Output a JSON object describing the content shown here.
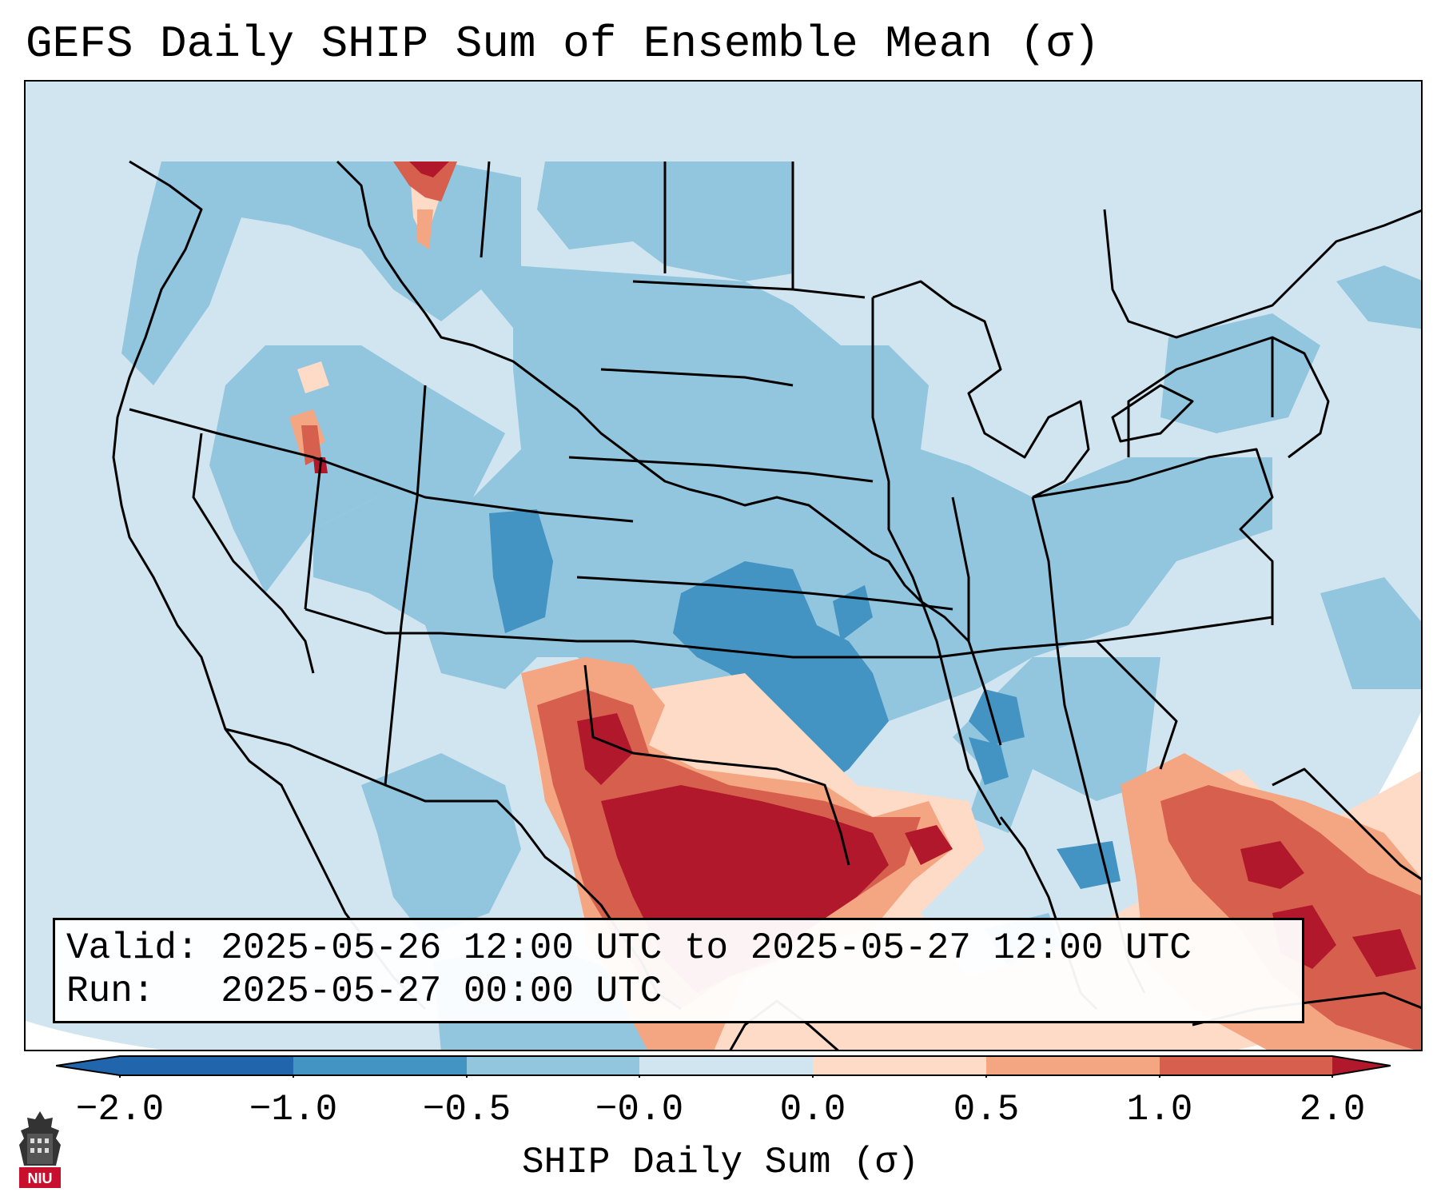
{
  "title": "GEFS Daily SHIP Sum of Ensemble Mean (σ)",
  "info": {
    "valid_label": "Valid:",
    "valid_value": "2025-05-26 12:00 UTC to 2025-05-27 12:00 UTC",
    "run_label": "Run:",
    "run_value": "2025-05-27 00:00 UTC"
  },
  "colorbar": {
    "label": "SHIP Daily Sum (σ)",
    "ticks": [
      "−2.0",
      "−1.0",
      "−0.5",
      "−0.0",
      "0.0",
      "0.5",
      "1.0",
      "2.0"
    ],
    "colors": [
      "#2166ac",
      "#4393c3",
      "#92c5de",
      "#d1e5f0",
      "#f7f7f7",
      "#fddbc7",
      "#f4a582",
      "#d6604d",
      "#b2182b"
    ],
    "extend": "both"
  },
  "logo": {
    "text": "NIU",
    "icon": "niu-logo-icon"
  },
  "map": {
    "projection": "Lambert Conformal",
    "region": "Continental United States",
    "background_color": "#d1e5f0",
    "highlight": "Positive anomalies over Texas, Gulf Coast, Florida and the Bahamas; negative anomalies over the Plains and Midwest"
  }
}
